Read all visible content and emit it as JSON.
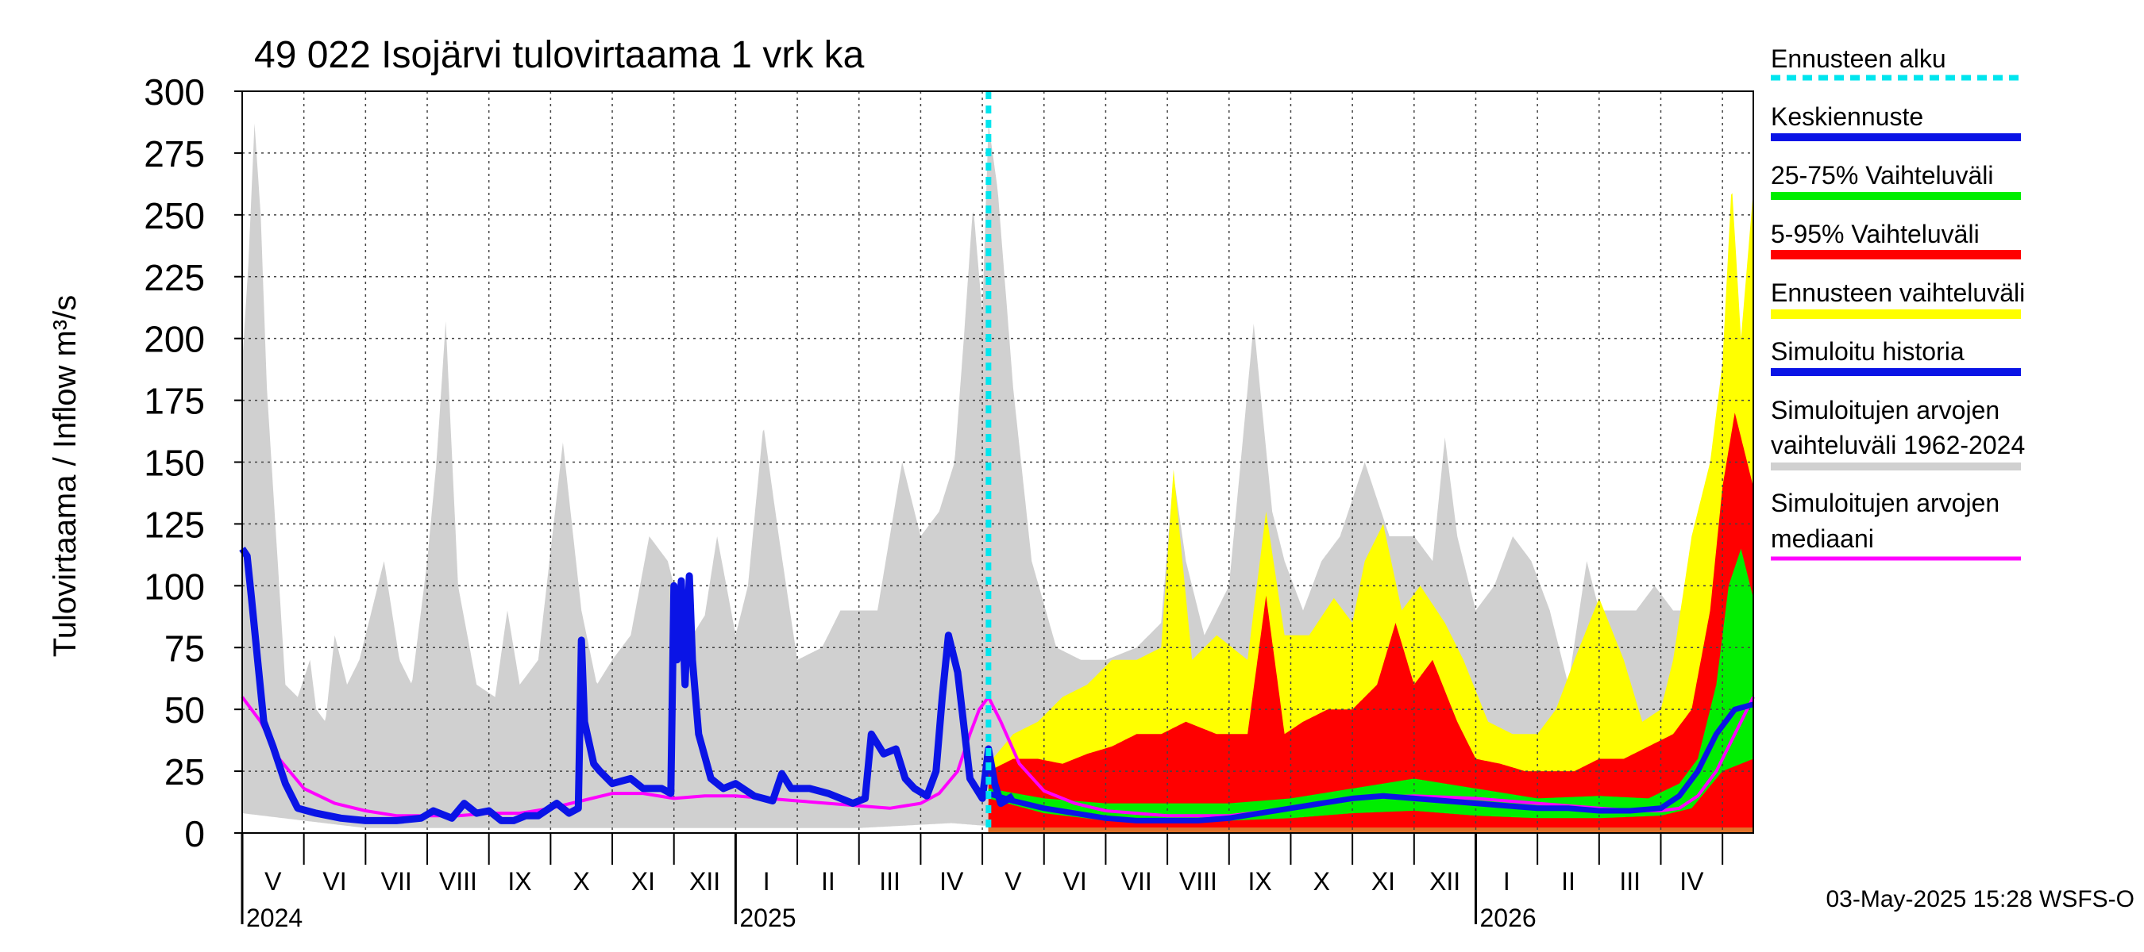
{
  "chart_data": {
    "type": "area",
    "title": "49 022 Isojärvi tulovirtaama 1 vrk ka",
    "ylabel": "Tulovirtaama / Inflow    m³/s",
    "ylim": [
      0,
      300
    ],
    "y_ticks": [
      "0",
      "25",
      "50",
      "75",
      "100",
      "125",
      "150",
      "175",
      "200",
      "225",
      "250",
      "275",
      "300"
    ],
    "x_range_months": [
      0,
      24.5
    ],
    "month_labels": [
      "V",
      "VI",
      "VII",
      "VIII",
      "IX",
      "X",
      "XI",
      "XII",
      "I",
      "II",
      "III",
      "IV",
      "V",
      "VI",
      "VII",
      "VIII",
      "IX",
      "X",
      "XI",
      "XII",
      "I",
      "II",
      "III",
      "IV"
    ],
    "year_labels": [
      {
        "label": "2024",
        "month_index": 0
      },
      {
        "label": "2025",
        "month_index": 8
      },
      {
        "label": "2026",
        "month_index": 20
      }
    ],
    "forecast_start_month": 12.1,
    "footer": "03-May-2025 15:28 WSFS-O",
    "legend": [
      {
        "label": "Ennusteen alku",
        "color": "#00e5ee",
        "style": "dashed"
      },
      {
        "label": "Keskiennuste",
        "color": "#0a14e6",
        "style": "solid"
      },
      {
        "label": "25-75% Vaihteluväli",
        "color": "#00ee00",
        "style": "solid"
      },
      {
        "label": "5-95% Vaihteluväli",
        "color": "#ff0000",
        "style": "solid"
      },
      {
        "label": "Ennusteen vaihteluväli",
        "color": "#ffff00",
        "style": "solid"
      },
      {
        "label": "Simuloitu historia",
        "color": "#0a14e6",
        "style": "solid"
      },
      {
        "label": "Simuloitujen arvojen vaihteluväli 1962-2024",
        "color": "#d0d0d0",
        "style": "solid"
      },
      {
        "label": "Simuloitujen arvojen mediaani",
        "color": "#ff00ff",
        "style": "solid"
      }
    ],
    "series": [
      {
        "name": "Simuloitujen arvojen vaihteluväli 1962-2024 (max)",
        "color": "#d0d0d0",
        "x": [
          0,
          0.1,
          0.2,
          0.3,
          0.4,
          0.55,
          0.7,
          0.9,
          1.1,
          1.2,
          1.35,
          1.5,
          1.7,
          1.9,
          2.1,
          2.3,
          2.55,
          2.75,
          3.0,
          3.15,
          3.3,
          3.5,
          3.8,
          4.1,
          4.3,
          4.5,
          4.8,
          5.2,
          5.5,
          5.75,
          6.0,
          6.3,
          6.6,
          6.9,
          7.1,
          7.3,
          7.5,
          7.7,
          8.0,
          8.2,
          8.45,
          8.7,
          9.0,
          9.4,
          9.7,
          10.0,
          10.3,
          10.7,
          11.0,
          11.3,
          11.55,
          11.7,
          11.85,
          12.0,
          12.1,
          12.25,
          12.5,
          12.8,
          13.2,
          13.6,
          14.0,
          14.5,
          14.9,
          15.1,
          15.3,
          15.6,
          16.0,
          16.4,
          16.7,
          16.9,
          17.2,
          17.5,
          17.8,
          18.2,
          18.6,
          19.0,
          19.3,
          19.5,
          19.7,
          20.0,
          20.3,
          20.6,
          20.9,
          21.2,
          21.5,
          21.8,
          22.0,
          22.3,
          22.6,
          22.9,
          23.2,
          23.5,
          23.8,
          24.0,
          24.2,
          24.5
        ],
        "values": [
          190,
          230,
          287,
          250,
          180,
          120,
          60,
          55,
          70,
          50,
          45,
          80,
          60,
          70,
          90,
          110,
          70,
          60,
          110,
          150,
          207,
          100,
          60,
          55,
          90,
          60,
          70,
          158,
          90,
          60,
          70,
          80,
          120,
          110,
          90,
          80,
          88,
          120,
          80,
          100,
          165,
          120,
          70,
          75,
          90,
          90,
          90,
          150,
          120,
          130,
          150,
          200,
          254,
          210,
          287,
          260,
          180,
          110,
          75,
          70,
          70,
          75,
          85,
          145,
          110,
          80,
          100,
          206,
          130,
          110,
          90,
          110,
          120,
          150,
          120,
          120,
          110,
          160,
          120,
          90,
          100,
          120,
          110,
          90,
          60,
          110,
          90,
          90,
          90,
          100,
          90,
          90,
          140,
          190,
          205,
          190
        ]
      },
      {
        "name": "Simuloitujen arvojen vaihteluväli 1962-2024 (min)",
        "color": "#d0d0d0",
        "x": [
          0,
          2.0,
          4.0,
          6.0,
          8.0,
          10.0,
          11.5,
          12.0,
          13.0,
          16.0,
          20.0,
          23.0,
          23.5,
          24.0,
          24.5
        ],
        "values": [
          8,
          2,
          2,
          2,
          2,
          2,
          4,
          3,
          2,
          2,
          2,
          2,
          4,
          3,
          3
        ]
      },
      {
        "name": "Ennusteen vaihteluväli (max)",
        "color": "#ffff00",
        "x": [
          12.1,
          12.5,
          12.9,
          13.3,
          13.7,
          14.1,
          14.5,
          14.9,
          15.1,
          15.4,
          15.8,
          16.3,
          16.6,
          16.9,
          17.3,
          17.7,
          18.0,
          18.2,
          18.5,
          18.8,
          19.1,
          19.5,
          19.8,
          20.2,
          20.6,
          21.0,
          21.3,
          21.6,
          22.0,
          22.4,
          22.7,
          23.0,
          23.2,
          23.5,
          23.8,
          24.0,
          24.15,
          24.3,
          24.5
        ],
        "values": [
          28,
          40,
          45,
          55,
          60,
          70,
          70,
          75,
          147,
          70,
          80,
          70,
          130,
          80,
          80,
          95,
          85,
          110,
          125,
          90,
          100,
          85,
          70,
          45,
          40,
          40,
          50,
          70,
          95,
          70,
          45,
          50,
          70,
          120,
          150,
          190,
          263,
          200,
          260
        ]
      },
      {
        "name": "5-95% Vaihteluväli (max)",
        "color": "#ff0000",
        "x": [
          12.1,
          12.5,
          12.9,
          13.3,
          13.7,
          14.1,
          14.5,
          14.9,
          15.3,
          15.8,
          16.3,
          16.6,
          16.9,
          17.2,
          17.6,
          18.0,
          18.4,
          18.7,
          19.0,
          19.3,
          19.7,
          20.0,
          20.4,
          20.8,
          21.2,
          21.6,
          22.0,
          22.4,
          22.8,
          23.2,
          23.5,
          23.8,
          24.0,
          24.2,
          24.5
        ],
        "values": [
          25,
          30,
          30,
          28,
          32,
          35,
          40,
          40,
          45,
          40,
          40,
          96,
          40,
          45,
          50,
          50,
          60,
          85,
          60,
          70,
          45,
          30,
          28,
          25,
          25,
          25,
          30,
          30,
          35,
          40,
          50,
          90,
          140,
          170,
          140
        ]
      },
      {
        "name": "25-75% Vaihteluväli (max)",
        "color": "#00ee00",
        "x": [
          12.1,
          13.0,
          14.0,
          15.0,
          16.0,
          17.0,
          18.0,
          19.0,
          20.0,
          21.0,
          22.0,
          22.8,
          23.3,
          23.6,
          23.9,
          24.1,
          24.3,
          24.5
        ],
        "values": [
          18,
          14,
          12,
          12,
          12,
          14,
          18,
          22,
          18,
          14,
          15,
          14,
          20,
          30,
          60,
          100,
          115,
          95
        ]
      },
      {
        "name": "25-75% Vaihteluväli (min)",
        "color": "#00ee00",
        "x": [
          12.1,
          13.0,
          14.0,
          15.0,
          16.0,
          17.0,
          18.0,
          19.0,
          20.0,
          21.0,
          22.0,
          23.0,
          23.5,
          24.0,
          24.5
        ],
        "values": [
          14,
          8,
          5,
          4,
          5,
          6,
          8,
          9,
          7,
          6,
          6,
          7,
          10,
          25,
          30
        ]
      },
      {
        "name": "5-95% Vaihteluväli (min)",
        "color": "#ff0000",
        "x": [
          12.1,
          13.0,
          14.0,
          15.0,
          16.0,
          17.0,
          18.0,
          19.0,
          20.0,
          21.0,
          22.0,
          23.0,
          23.5,
          24.0,
          24.5
        ],
        "values": [
          12,
          4,
          2,
          2,
          2,
          3,
          3,
          3,
          3,
          3,
          3,
          3,
          4,
          8,
          12
        ]
      },
      {
        "name": "Simuloitujen arvojen mediaani",
        "color": "#ff00ff",
        "x": [
          0,
          0.15,
          0.3,
          0.6,
          1.0,
          1.5,
          2.0,
          2.5,
          3.0,
          3.5,
          4.0,
          4.5,
          5.0,
          5.5,
          6.0,
          6.5,
          7.0,
          7.5,
          8.0,
          8.5,
          9.0,
          9.5,
          10.0,
          10.5,
          11.0,
          11.3,
          11.6,
          11.8,
          11.95,
          12.1,
          12.3,
          12.6,
          13.0,
          13.5,
          14.0,
          15.0,
          16.0,
          17.0,
          18.0,
          19.0,
          20.0,
          21.0,
          22.0,
          22.6,
          23.0,
          23.3,
          23.6,
          23.9,
          24.2,
          24.5
        ],
        "values": [
          55,
          50,
          45,
          30,
          18,
          12,
          9,
          7,
          7,
          7,
          8,
          8,
          10,
          13,
          16,
          16,
          14,
          15,
          15,
          14,
          13,
          12,
          11,
          10,
          12,
          16,
          25,
          40,
          50,
          55,
          45,
          28,
          17,
          12,
          9,
          7,
          7,
          10,
          14,
          15,
          14,
          12,
          10,
          9,
          9,
          10,
          15,
          25,
          40,
          55
        ]
      },
      {
        "name": "Simuloitu historia",
        "color": "#0a14e6",
        "x": [
          0,
          0.08,
          0.15,
          0.25,
          0.35,
          0.5,
          0.7,
          0.9,
          1.2,
          1.6,
          2.0,
          2.5,
          2.9,
          3.1,
          3.4,
          3.6,
          3.8,
          4.0,
          4.2,
          4.4,
          4.6,
          4.8,
          5.1,
          5.3,
          5.45,
          5.5,
          5.55,
          5.7,
          5.8,
          6.0,
          6.3,
          6.5,
          6.8,
          6.95,
          7.0,
          7.05,
          7.12,
          7.18,
          7.25,
          7.3,
          7.4,
          7.6,
          7.8,
          8.0,
          8.3,
          8.6,
          8.75,
          8.9,
          9.2,
          9.5,
          9.9,
          10.1,
          10.2,
          10.4,
          10.6,
          10.75,
          10.9,
          11.1,
          11.25,
          11.35,
          11.45,
          11.6,
          11.8,
          12.0,
          12.1,
          12.2,
          12.3,
          12.5
        ],
        "values": [
          115,
          112,
          95,
          70,
          45,
          35,
          20,
          10,
          8,
          6,
          5,
          5,
          6,
          9,
          6,
          12,
          8,
          9,
          5,
          5,
          7,
          7,
          12,
          8,
          10,
          78,
          45,
          28,
          25,
          20,
          22,
          18,
          18,
          16,
          100,
          70,
          102,
          60,
          104,
          70,
          40,
          22,
          18,
          20,
          15,
          13,
          24,
          18,
          18,
          16,
          12,
          14,
          40,
          32,
          34,
          22,
          18,
          15,
          25,
          55,
          80,
          65,
          22,
          14,
          34,
          20,
          12,
          15
        ]
      },
      {
        "name": "Keskiennuste",
        "color": "#0a14e6",
        "x": [
          12.1,
          12.5,
          13.0,
          13.5,
          14.0,
          14.5,
          15.0,
          15.5,
          16.0,
          16.5,
          17.0,
          17.5,
          18.0,
          18.5,
          19.0,
          19.5,
          20.0,
          20.5,
          21.0,
          21.5,
          22.0,
          22.5,
          23.0,
          23.3,
          23.6,
          23.9,
          24.2,
          24.5
        ],
        "values": [
          16,
          13,
          10,
          8,
          6,
          5,
          5,
          5,
          6,
          8,
          10,
          12,
          14,
          15,
          14,
          13,
          12,
          11,
          10,
          10,
          9,
          9,
          10,
          15,
          25,
          40,
          50,
          52
        ]
      }
    ]
  }
}
